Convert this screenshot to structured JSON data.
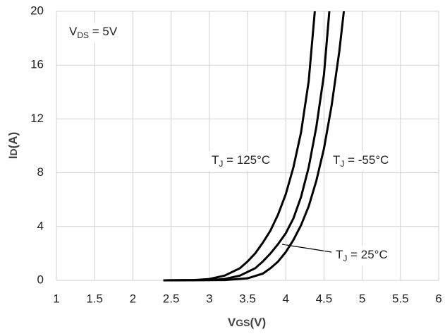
{
  "chart_data": {
    "type": "line",
    "x_label": {
      "main": "V",
      "sub": "GS",
      "suffix": "(V)"
    },
    "y_label": {
      "main": "I",
      "sub": "D",
      "suffix": "(A)"
    },
    "xlim": [
      1,
      6
    ],
    "xticks": [
      1,
      1.5,
      2,
      2.5,
      3,
      3.5,
      4,
      4.5,
      5,
      5.5,
      6
    ],
    "ylim": [
      0,
      20
    ],
    "yticks": [
      0,
      4,
      8,
      12,
      16,
      20
    ],
    "grid": true,
    "series": [
      {
        "color": "#000000",
        "x": [
          2.4,
          2.8,
          3.0,
          3.2,
          3.4,
          3.5,
          3.6,
          3.7,
          3.8,
          3.9,
          4.0,
          4.1,
          4.2,
          4.3,
          4.38
        ],
        "values": [
          0,
          0.02,
          0.1,
          0.35,
          0.9,
          1.4,
          2.0,
          2.8,
          3.7,
          4.9,
          6.4,
          8.4,
          11,
          14.8,
          20
        ]
      },
      {
        "color": "#000000",
        "x": [
          2.4,
          3.0,
          3.2,
          3.4,
          3.6,
          3.7,
          3.8,
          3.9,
          4.0,
          4.1,
          4.2,
          4.3,
          4.4,
          4.5,
          4.57
        ],
        "values": [
          0,
          0.02,
          0.1,
          0.35,
          0.9,
          1.4,
          2.0,
          2.7,
          3.5,
          4.6,
          6.2,
          8.4,
          11.4,
          15.3,
          20
        ]
      },
      {
        "color": "#000000",
        "x": [
          2.4,
          3.2,
          3.5,
          3.7,
          3.8,
          3.9,
          4.0,
          4.1,
          4.2,
          4.3,
          4.4,
          4.5,
          4.6,
          4.7,
          4.76
        ],
        "values": [
          0,
          0.02,
          0.15,
          0.5,
          0.9,
          1.4,
          2.1,
          3.0,
          4.1,
          5.5,
          7.4,
          9.8,
          13,
          17,
          20
        ]
      }
    ],
    "annotations": [
      {
        "main": "V",
        "sub": "DS",
        "suffix": " = 5V"
      },
      {
        "main": "T",
        "sub": "J",
        "suffix": " = 125°C"
      },
      {
        "main": "T",
        "sub": "J",
        "suffix": " = -55°C"
      },
      {
        "main": "T",
        "sub": "J",
        "suffix": " = 25°C"
      }
    ]
  }
}
